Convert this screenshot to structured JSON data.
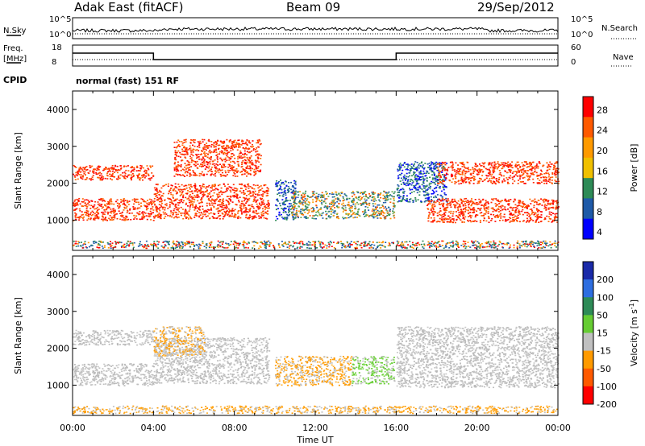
{
  "header": {
    "title": "Adak East (fitACF)",
    "beam": "Beam 09",
    "date": "29/Sep/2012"
  },
  "top_panels": {
    "nsky_label": "N.Sky",
    "nsky_ticks": [
      "10^5",
      "10^0"
    ],
    "nsearch_label": "N.Search",
    "freq_label_1": "Freq.",
    "freq_label_2": "[MHz]",
    "freq_ticks": [
      "18",
      "8"
    ],
    "nave_ticks": [
      "60",
      "0"
    ],
    "nave_label": "Nave",
    "cpid_label": "CPID",
    "mode_text": "normal (fast) 151 RF"
  },
  "chart_data": [
    {
      "type": "heatmap",
      "name": "Power",
      "ylabel": "Slant Range [km]",
      "xlabel": "Time UT",
      "ylim": [
        180,
        4500
      ],
      "xlim": [
        0,
        24
      ],
      "yticks": [
        1000,
        2000,
        3000,
        4000
      ],
      "colorbar": {
        "label": "Power [dB]",
        "ticks": [
          "28",
          "24",
          "20",
          "16",
          "12",
          "8",
          "4"
        ],
        "colors": [
          "#ff0000",
          "#ff5a00",
          "#ff9a00",
          "#f0c000",
          "#2e8b57",
          "#1e5aa8",
          "#0000ff"
        ]
      },
      "regions": [
        {
          "t0": 0.0,
          "t1": 4.0,
          "r0": 1000,
          "r1": 1600,
          "level": "red"
        },
        {
          "t0": 0.0,
          "t1": 4.0,
          "r0": 2100,
          "r1": 2500,
          "level": "red"
        },
        {
          "t0": 4.0,
          "t1": 9.7,
          "r0": 1050,
          "r1": 2000,
          "level": "red"
        },
        {
          "t0": 5.0,
          "t1": 9.3,
          "r0": 2200,
          "r1": 3200,
          "level": "red"
        },
        {
          "t0": 10.0,
          "t1": 11.0,
          "r0": 1000,
          "r1": 2100,
          "level": "blue"
        },
        {
          "t0": 10.8,
          "t1": 15.9,
          "r0": 1050,
          "r1": 1800,
          "level": "green"
        },
        {
          "t0": 16.0,
          "t1": 18.5,
          "r0": 1500,
          "r1": 2600,
          "level": "blue"
        },
        {
          "t0": 17.5,
          "t1": 24.0,
          "r0": 950,
          "r1": 1600,
          "level": "red"
        },
        {
          "t0": 18.0,
          "t1": 24.0,
          "r0": 2000,
          "r1": 2600,
          "level": "red"
        },
        {
          "t0": 0.0,
          "t1": 24.0,
          "r0": 250,
          "r1": 450,
          "level": "mixed"
        }
      ]
    },
    {
      "type": "heatmap",
      "name": "Velocity",
      "ylabel": "Slant Range [km]",
      "xlabel": "Time UT",
      "ylim": [
        180,
        4500
      ],
      "xlim": [
        0,
        24
      ],
      "yticks": [
        1000,
        2000,
        3000,
        4000
      ],
      "xticks": [
        "00:00",
        "04:00",
        "08:00",
        "12:00",
        "16:00",
        "20:00",
        "00:00"
      ],
      "colorbar": {
        "label": "Velocity [m s",
        "label_superscript": "-1",
        "label_close": "]",
        "ticks": [
          "200",
          "100",
          "50",
          "15",
          "-15",
          "-50",
          "-100",
          "-200"
        ],
        "colors": [
          "#1a2aa8",
          "#2e6ee0",
          "#2e8b57",
          "#66cc33",
          "#c0c0c0",
          "#ff9a00",
          "#ff5a00",
          "#ff0000"
        ]
      },
      "regions": [
        {
          "t0": 0.0,
          "t1": 4.0,
          "r0": 1000,
          "r1": 1600,
          "level": "gray"
        },
        {
          "t0": 0.0,
          "t1": 4.0,
          "r0": 2100,
          "r1": 2500,
          "level": "gray"
        },
        {
          "t0": 4.0,
          "t1": 9.7,
          "r0": 1050,
          "r1": 2300,
          "level": "gray"
        },
        {
          "t0": 4.0,
          "t1": 6.5,
          "r0": 1800,
          "r1": 2600,
          "level": "orange"
        },
        {
          "t0": 10.0,
          "t1": 13.8,
          "r0": 1000,
          "r1": 1800,
          "level": "orange"
        },
        {
          "t0": 13.8,
          "t1": 15.9,
          "r0": 1050,
          "r1": 1800,
          "level": "lightgreen"
        },
        {
          "t0": 16.0,
          "t1": 24.0,
          "r0": 950,
          "r1": 2600,
          "level": "gray"
        },
        {
          "t0": 0.0,
          "t1": 24.0,
          "r0": 250,
          "r1": 450,
          "level": "orange"
        }
      ]
    }
  ]
}
